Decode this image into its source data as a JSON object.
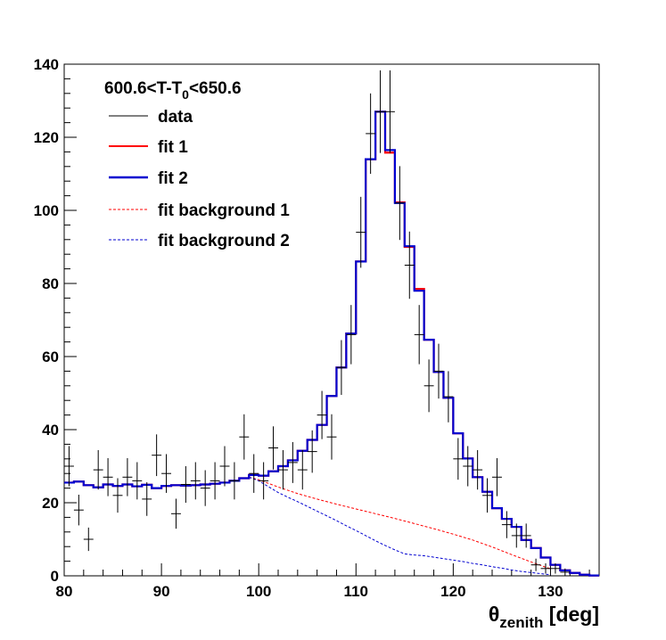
{
  "chart_data": {
    "type": "histogram",
    "title": "600.6<T-T0<650.6",
    "title_parts": {
      "before_sub": "600.6<T-T",
      "sub": "0",
      "after_sub": "<650.6"
    },
    "xlabel": "θzenith [deg]",
    "xlabel_parts": {
      "symbol": "θ",
      "sub": "zenith",
      "unit": " [deg]"
    },
    "ylabel": "",
    "xlim": [
      80,
      135
    ],
    "ylim": [
      0,
      140
    ],
    "x_ticks": [
      80,
      90,
      100,
      110,
      120,
      130
    ],
    "y_ticks": [
      0,
      20,
      40,
      60,
      80,
      100,
      120,
      140
    ],
    "bin_edges_start": 80,
    "bin_width": 1,
    "legend_position": "top-left",
    "series": [
      {
        "name": "data",
        "style": "points-with-error-bars",
        "color": "#000000",
        "x": [
          80.5,
          81.5,
          82.5,
          83.5,
          84.5,
          85.5,
          86.5,
          87.5,
          88.5,
          89.5,
          90.5,
          91.5,
          92.5,
          93.5,
          94.5,
          95.5,
          96.5,
          97.5,
          98.5,
          99.5,
          100.5,
          101.5,
          102.5,
          103.5,
          104.5,
          105.5,
          106.5,
          107.5,
          108.5,
          109.5,
          110.5,
          111.5,
          112.5,
          113.5,
          114.5,
          115.5,
          116.5,
          117.5,
          118.5,
          119.5,
          120.5,
          121.5,
          122.5,
          123.5,
          124.5,
          125.5,
          126.5,
          127.5,
          128.5,
          129.5,
          130.5,
          131.5
        ],
        "y": [
          30,
          18,
          10,
          29,
          27,
          22,
          27,
          26,
          21,
          33,
          28,
          17,
          25,
          26,
          24,
          26,
          30,
          26,
          38,
          28,
          26,
          35,
          29,
          31,
          29,
          34,
          44,
          38,
          57,
          66,
          94,
          121,
          127,
          127,
          102,
          85,
          66,
          52,
          56,
          49,
          32,
          30,
          29,
          22,
          27,
          14,
          11,
          11,
          3,
          2,
          2,
          1
        ],
        "yerr": [
          5.5,
          4.2,
          3.2,
          5.4,
          5.2,
          4.7,
          5.2,
          5.1,
          4.6,
          5.7,
          5.3,
          4.1,
          5.0,
          5.1,
          4.9,
          5.1,
          5.5,
          5.1,
          6.2,
          5.3,
          5.1,
          5.9,
          5.4,
          5.6,
          5.4,
          5.8,
          6.6,
          6.2,
          7.5,
          8.1,
          9.7,
          11.0,
          11.3,
          11.3,
          10.1,
          9.2,
          8.1,
          7.2,
          7.5,
          7.0,
          5.7,
          5.5,
          5.4,
          4.7,
          5.2,
          3.7,
          3.3,
          3.3,
          1.7,
          1.4,
          1.4,
          1.0
        ]
      },
      {
        "name": "fit 1",
        "style": "histogram-step-solid",
        "color": "#ff0000",
        "values": [
          25.5,
          25.8,
          24.8,
          24.2,
          25.0,
          24.6,
          25.0,
          24.5,
          24.9,
          24.0,
          24.6,
          24.8,
          24.7,
          24.8,
          25.0,
          25.2,
          25.5,
          26.0,
          26.7,
          27.6,
          27.4,
          28.6,
          30.0,
          31.6,
          34.2,
          37.2,
          41.3,
          49.2,
          57.0,
          66.3,
          86.0,
          114.0,
          127.0,
          115.8,
          102.2,
          90.0,
          78.5,
          64.6,
          55.8,
          48.7,
          39.0,
          32.1,
          27.0,
          23.0,
          18.5,
          15.6,
          13.4,
          9.8,
          7.6,
          5.0,
          3.0,
          1.5,
          0.8,
          0.3,
          0.1
        ]
      },
      {
        "name": "fit 2",
        "style": "histogram-step-solid",
        "color": "#0000d0",
        "values": [
          25.5,
          25.8,
          24.8,
          24.2,
          25.0,
          24.6,
          25.0,
          24.5,
          24.9,
          24.0,
          24.6,
          24.8,
          24.7,
          24.8,
          25.0,
          25.2,
          25.5,
          26.0,
          26.7,
          27.6,
          27.4,
          28.6,
          30.0,
          31.6,
          34.2,
          37.2,
          41.3,
          49.2,
          57.0,
          66.3,
          86.0,
          114.0,
          127.0,
          116.5,
          102.0,
          90.2,
          78.0,
          64.6,
          55.8,
          48.7,
          39.0,
          32.1,
          27.0,
          23.0,
          18.5,
          15.6,
          13.4,
          9.8,
          7.6,
          5.0,
          3.0,
          1.5,
          0.8,
          0.3,
          0.1
        ]
      },
      {
        "name": "fit background 1",
        "style": "dashed-line",
        "color": "#ff0000",
        "x": [
          99,
          100,
          102,
          104,
          106,
          108,
          110,
          112,
          114,
          116,
          118,
          120,
          122,
          124,
          126,
          128,
          130
        ],
        "y": [
          27.0,
          26.3,
          24.3,
          22.5,
          21.0,
          19.6,
          18.3,
          17.0,
          15.7,
          14.3,
          12.9,
          11.4,
          9.8,
          7.9,
          5.8,
          3.8,
          1.9
        ]
      },
      {
        "name": "fit background 2",
        "style": "dashed-line",
        "color": "#0000d0",
        "x": [
          99,
          100,
          101,
          102,
          103,
          104,
          105,
          106,
          107,
          108,
          109,
          110,
          111,
          112,
          113,
          114,
          115,
          116,
          117,
          118,
          119,
          120,
          121,
          122,
          123,
          124,
          125,
          126,
          127,
          128,
          129,
          130
        ],
        "y": [
          27.0,
          26.0,
          24.4,
          22.8,
          21.5,
          20.3,
          19.0,
          17.7,
          16.4,
          15.1,
          13.7,
          12.4,
          11.0,
          9.6,
          8.3,
          7.1,
          6.0,
          5.7,
          5.5,
          5.1,
          4.7,
          4.3,
          3.9,
          3.4,
          3.0,
          2.5,
          2.1,
          1.6,
          1.2,
          0.9,
          0.6,
          0.3
        ]
      }
    ]
  }
}
